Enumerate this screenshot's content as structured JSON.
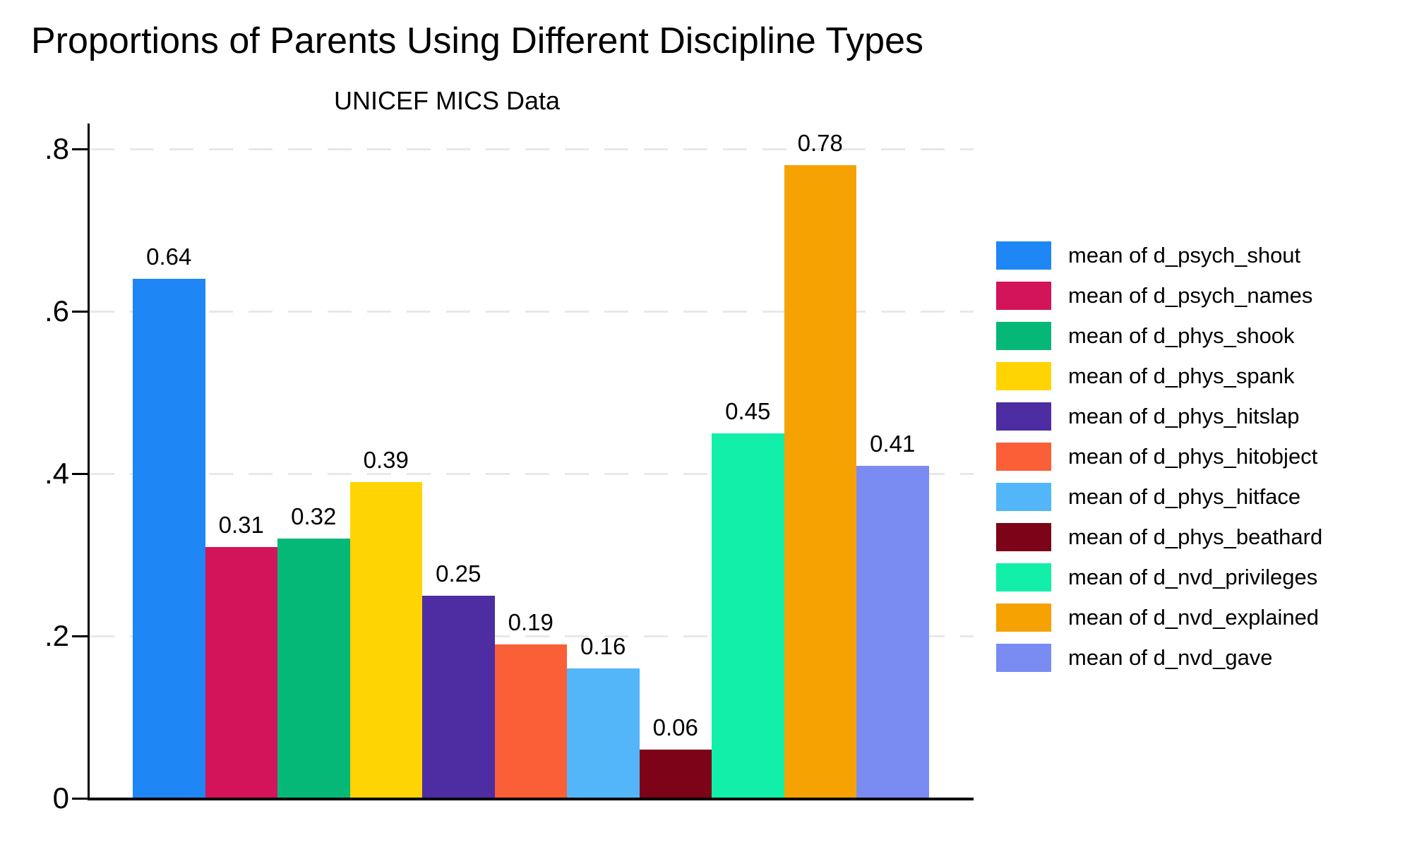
{
  "chart_data": {
    "type": "bar",
    "title": "Proportions of Parents Using Different Discipline Types",
    "subtitle": "UNICEF MICS Data",
    "xlabel": "",
    "ylabel": "",
    "ylim": [
      0,
      0.83
    ],
    "grid": "horizontal-dashed",
    "legend_position": "right",
    "value_label_decimals": 2,
    "yticks": [
      {
        "label": "0",
        "value": 0.0
      },
      {
        "label": ".2",
        "value": 0.2
      },
      {
        "label": ".4",
        "value": 0.4
      },
      {
        "label": ".6",
        "value": 0.6
      },
      {
        "label": ".8",
        "value": 0.8
      }
    ],
    "series": [
      {
        "name": "mean of d_psych_shout",
        "value": 0.64,
        "label": "0.64",
        "color": "#1E86F5"
      },
      {
        "name": "mean of d_psych_names",
        "value": 0.31,
        "label": "0.31",
        "color": "#D3135A"
      },
      {
        "name": "mean of d_phys_shook",
        "value": 0.32,
        "label": "0.32",
        "color": "#06B878"
      },
      {
        "name": "mean of d_phys_spank",
        "value": 0.39,
        "label": "0.39",
        "color": "#FFD402"
      },
      {
        "name": "mean of d_phys_hitslap",
        "value": 0.25,
        "label": "0.25",
        "color": "#4D2DA1"
      },
      {
        "name": "mean of d_phys_hitobject",
        "value": 0.19,
        "label": "0.19",
        "color": "#FB5F37"
      },
      {
        "name": "mean of d_phys_hitface",
        "value": 0.16,
        "label": "0.16",
        "color": "#52B6F8"
      },
      {
        "name": "mean of d_phys_beathard",
        "value": 0.06,
        "label": "0.06",
        "color": "#7C0318"
      },
      {
        "name": "mean of d_nvd_privileges",
        "value": 0.45,
        "label": "0.45",
        "color": "#12EFA9"
      },
      {
        "name": "mean of d_nvd_explained",
        "value": 0.78,
        "label": "0.78",
        "color": "#F6A202"
      },
      {
        "name": "mean of d_nvd_gave",
        "value": 0.41,
        "label": "0.41",
        "color": "#7A8BF2"
      }
    ],
    "colors": {
      "background": "#FFFFFF",
      "axis": "#000000",
      "gridline": "#E8E8E8",
      "text": "#000000"
    }
  }
}
